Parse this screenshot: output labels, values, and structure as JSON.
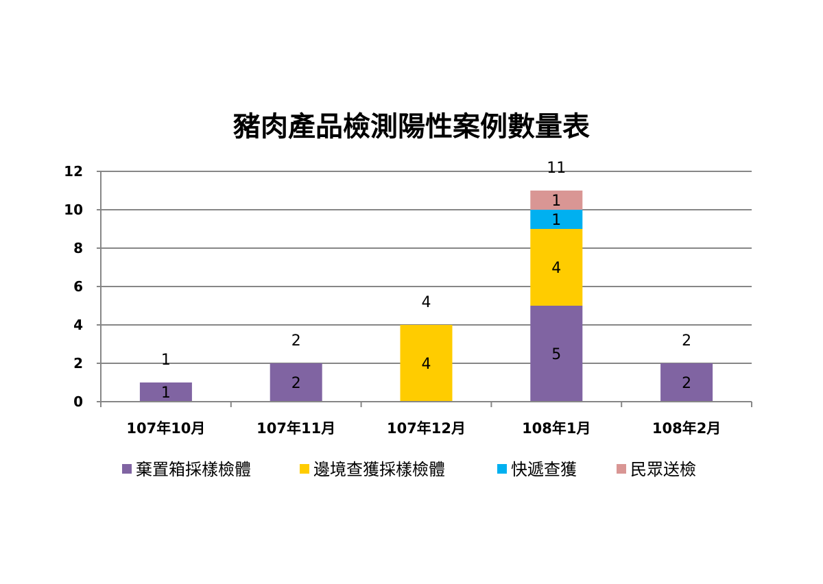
{
  "chart_data": {
    "type": "bar",
    "stacked": true,
    "title": "豬肉產品檢測陽性案例數量表",
    "xlabel": "",
    "ylabel": "",
    "categories": [
      "107年10月",
      "107年11月",
      "107年12月",
      "108年1月",
      "108年2月"
    ],
    "series": [
      {
        "name": "棄置箱採樣檢體",
        "color": "#8064A2",
        "values": [
          1,
          2,
          0,
          5,
          2
        ]
      },
      {
        "name": "邊境查獲採樣檢體",
        "color": "#FFCC00",
        "values": [
          0,
          0,
          4,
          4,
          0
        ]
      },
      {
        "name": "快遞查獲",
        "color": "#00B0F0",
        "values": [
          0,
          0,
          0,
          1,
          0
        ]
      },
      {
        "name": "民眾送檢",
        "color": "#D99694",
        "values": [
          0,
          0,
          0,
          1,
          0
        ]
      }
    ],
    "totals": [
      1,
      2,
      4,
      11,
      2
    ],
    "ylim": [
      0,
      12
    ],
    "yticks": [
      0,
      2,
      4,
      6,
      8,
      10,
      12
    ],
    "grid": true,
    "legend_position": "bottom",
    "gridline_color": "#868686",
    "axis_color": "#868686"
  }
}
